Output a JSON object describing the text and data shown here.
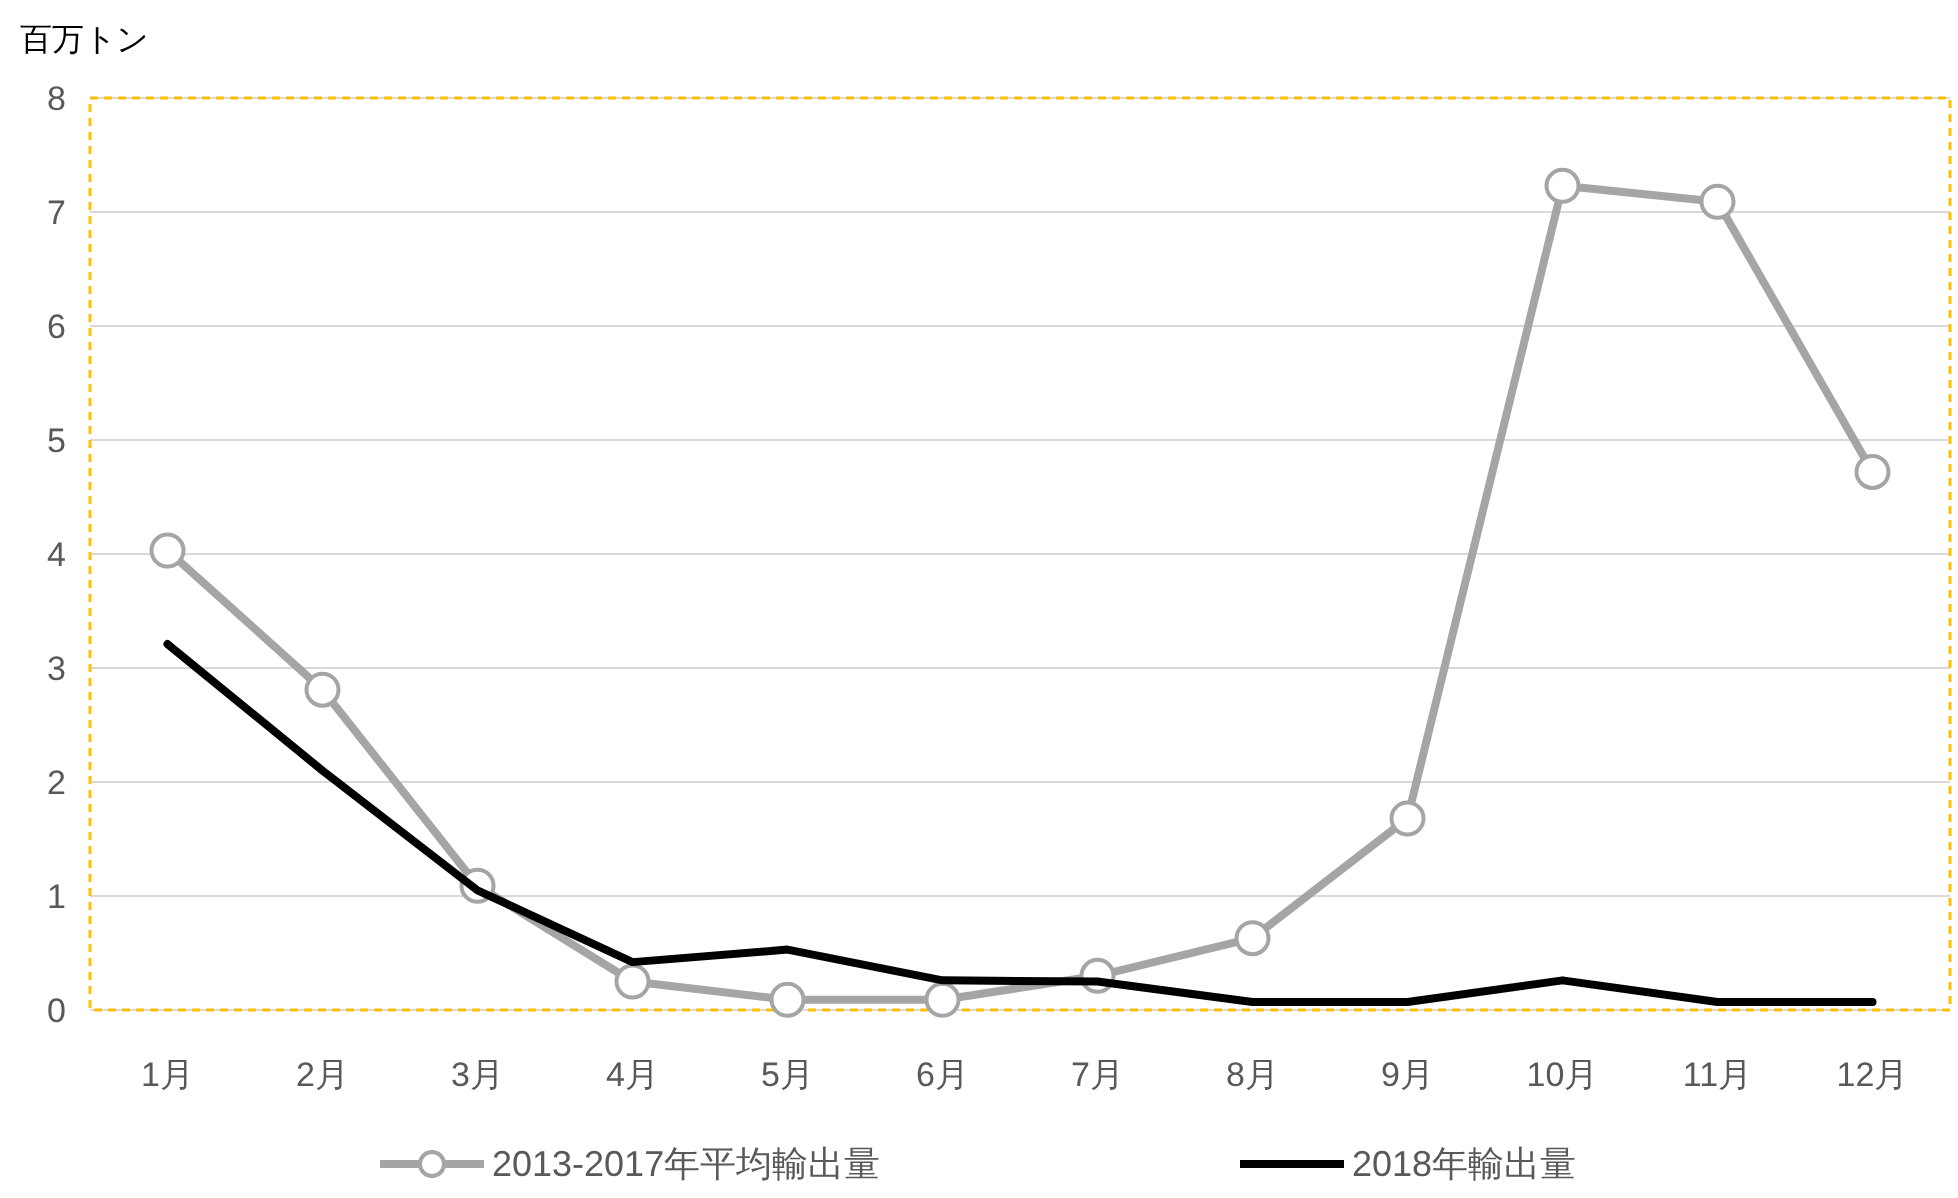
{
  "chart_data": {
    "type": "line",
    "ylabel": "百万トン",
    "categories": [
      "1月",
      "2月",
      "3月",
      "4月",
      "5月",
      "6月",
      "7月",
      "8月",
      "9月",
      "10月",
      "11月",
      "12月"
    ],
    "series": [
      {
        "name": "2013-2017年平均輸出量",
        "color": "#a5a5a5",
        "marker": "circle",
        "values": [
          4.03,
          2.81,
          1.09,
          0.25,
          0.09,
          0.09,
          0.3,
          0.63,
          1.68,
          7.23,
          7.09,
          4.72
        ]
      },
      {
        "name": "2018年輸出量",
        "color": "#000000",
        "marker": "none",
        "values": [
          3.21,
          2.1,
          1.05,
          0.42,
          0.53,
          0.26,
          0.25,
          0.07,
          0.07,
          0.26,
          0.07,
          0.07
        ]
      }
    ],
    "ylim": [
      0,
      8
    ],
    "yticks": [
      0,
      1,
      2,
      3,
      4,
      5,
      6,
      7,
      8
    ],
    "grid": "y",
    "legend": "bottom"
  }
}
